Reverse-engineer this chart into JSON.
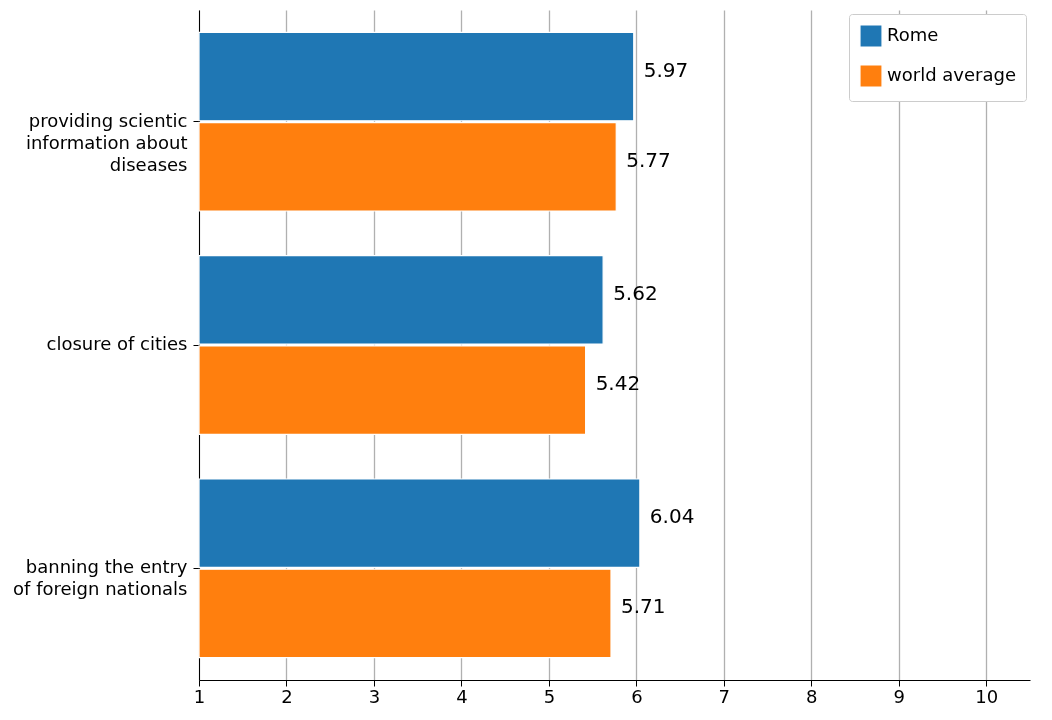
{
  "chart_data": {
    "type": "bar",
    "orientation": "horizontal",
    "categories": [
      "providing scientic\ninformation about\ndiseases",
      "closure of cities",
      "banning the entry\nof foreign nationals"
    ],
    "series": [
      {
        "name": "Rome",
        "color": "#1f77b4",
        "values": [
          5.97,
          5.62,
          6.04
        ]
      },
      {
        "name": "world average",
        "color": "#ff7f0e",
        "values": [
          5.77,
          5.42,
          5.71
        ]
      }
    ],
    "xlim": [
      1,
      10.5
    ],
    "xticks": [
      1,
      2,
      3,
      4,
      5,
      6,
      7,
      8,
      9,
      10
    ],
    "grid": "x",
    "legend": "top right",
    "data_labels": true
  }
}
